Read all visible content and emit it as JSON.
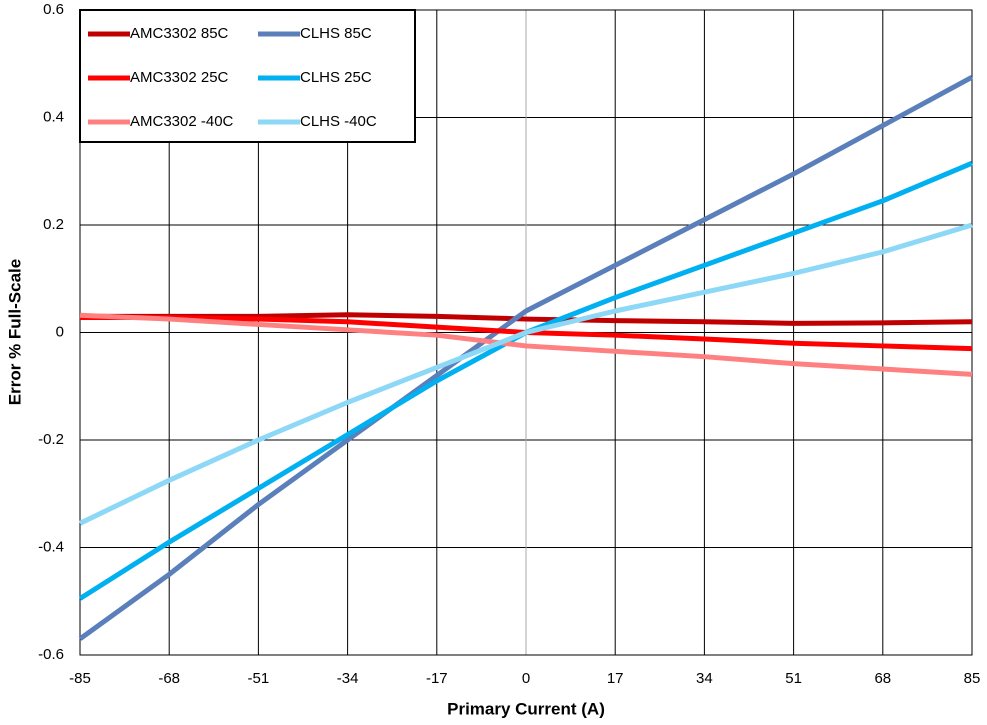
{
  "chart_data": {
    "type": "line",
    "x_label": "Primary Current (A)",
    "y_label": "Error % Full-Scale",
    "x": [
      -85,
      -68,
      -51,
      -34,
      -17,
      0,
      17,
      34,
      51,
      68,
      85
    ],
    "series": [
      {
        "name": "AMC3302 85C",
        "color": "#c00000",
        "values": [
          0.03,
          0.03,
          0.03,
          0.033,
          0.03,
          0.025,
          0.022,
          0.02,
          0.017,
          0.018,
          0.02
        ]
      },
      {
        "name": "CLHS 85C",
        "color": "#5b7fbb",
        "values": [
          -0.57,
          -0.45,
          -0.32,
          -0.2,
          -0.08,
          0.04,
          0.125,
          0.21,
          0.295,
          0.385,
          0.475
        ]
      },
      {
        "name": "AMC3302 25C",
        "color": "#ff0000",
        "values": [
          0.028,
          0.028,
          0.025,
          0.02,
          0.01,
          0.0,
          -0.005,
          -0.012,
          -0.02,
          -0.025,
          -0.03
        ]
      },
      {
        "name": "CLHS 25C",
        "color": "#00b0f0",
        "values": [
          -0.495,
          -0.39,
          -0.29,
          -0.19,
          -0.09,
          0.0,
          0.065,
          0.125,
          0.185,
          0.245,
          0.315
        ]
      },
      {
        "name": "AMC3302 -40C",
        "color": "#ff8080",
        "values": [
          0.032,
          0.025,
          0.015,
          0.005,
          -0.005,
          -0.025,
          -0.035,
          -0.045,
          -0.058,
          -0.068,
          -0.078
        ]
      },
      {
        "name": "CLHS -40C",
        "color": "#8dd8f6",
        "values": [
          -0.355,
          -0.275,
          -0.2,
          -0.13,
          -0.065,
          0.0,
          0.04,
          0.075,
          0.11,
          0.15,
          0.2
        ]
      }
    ],
    "xlim": [
      -85,
      85
    ],
    "xticks": [
      -85,
      -68,
      -51,
      -34,
      -17,
      0,
      17,
      34,
      51,
      68,
      85
    ],
    "ylim": [
      -0.6,
      0.6
    ],
    "yticks": [
      -0.6,
      -0.4,
      -0.2,
      0,
      0.2,
      0.4,
      0.6
    ],
    "grid": true,
    "legend": "upper left"
  }
}
